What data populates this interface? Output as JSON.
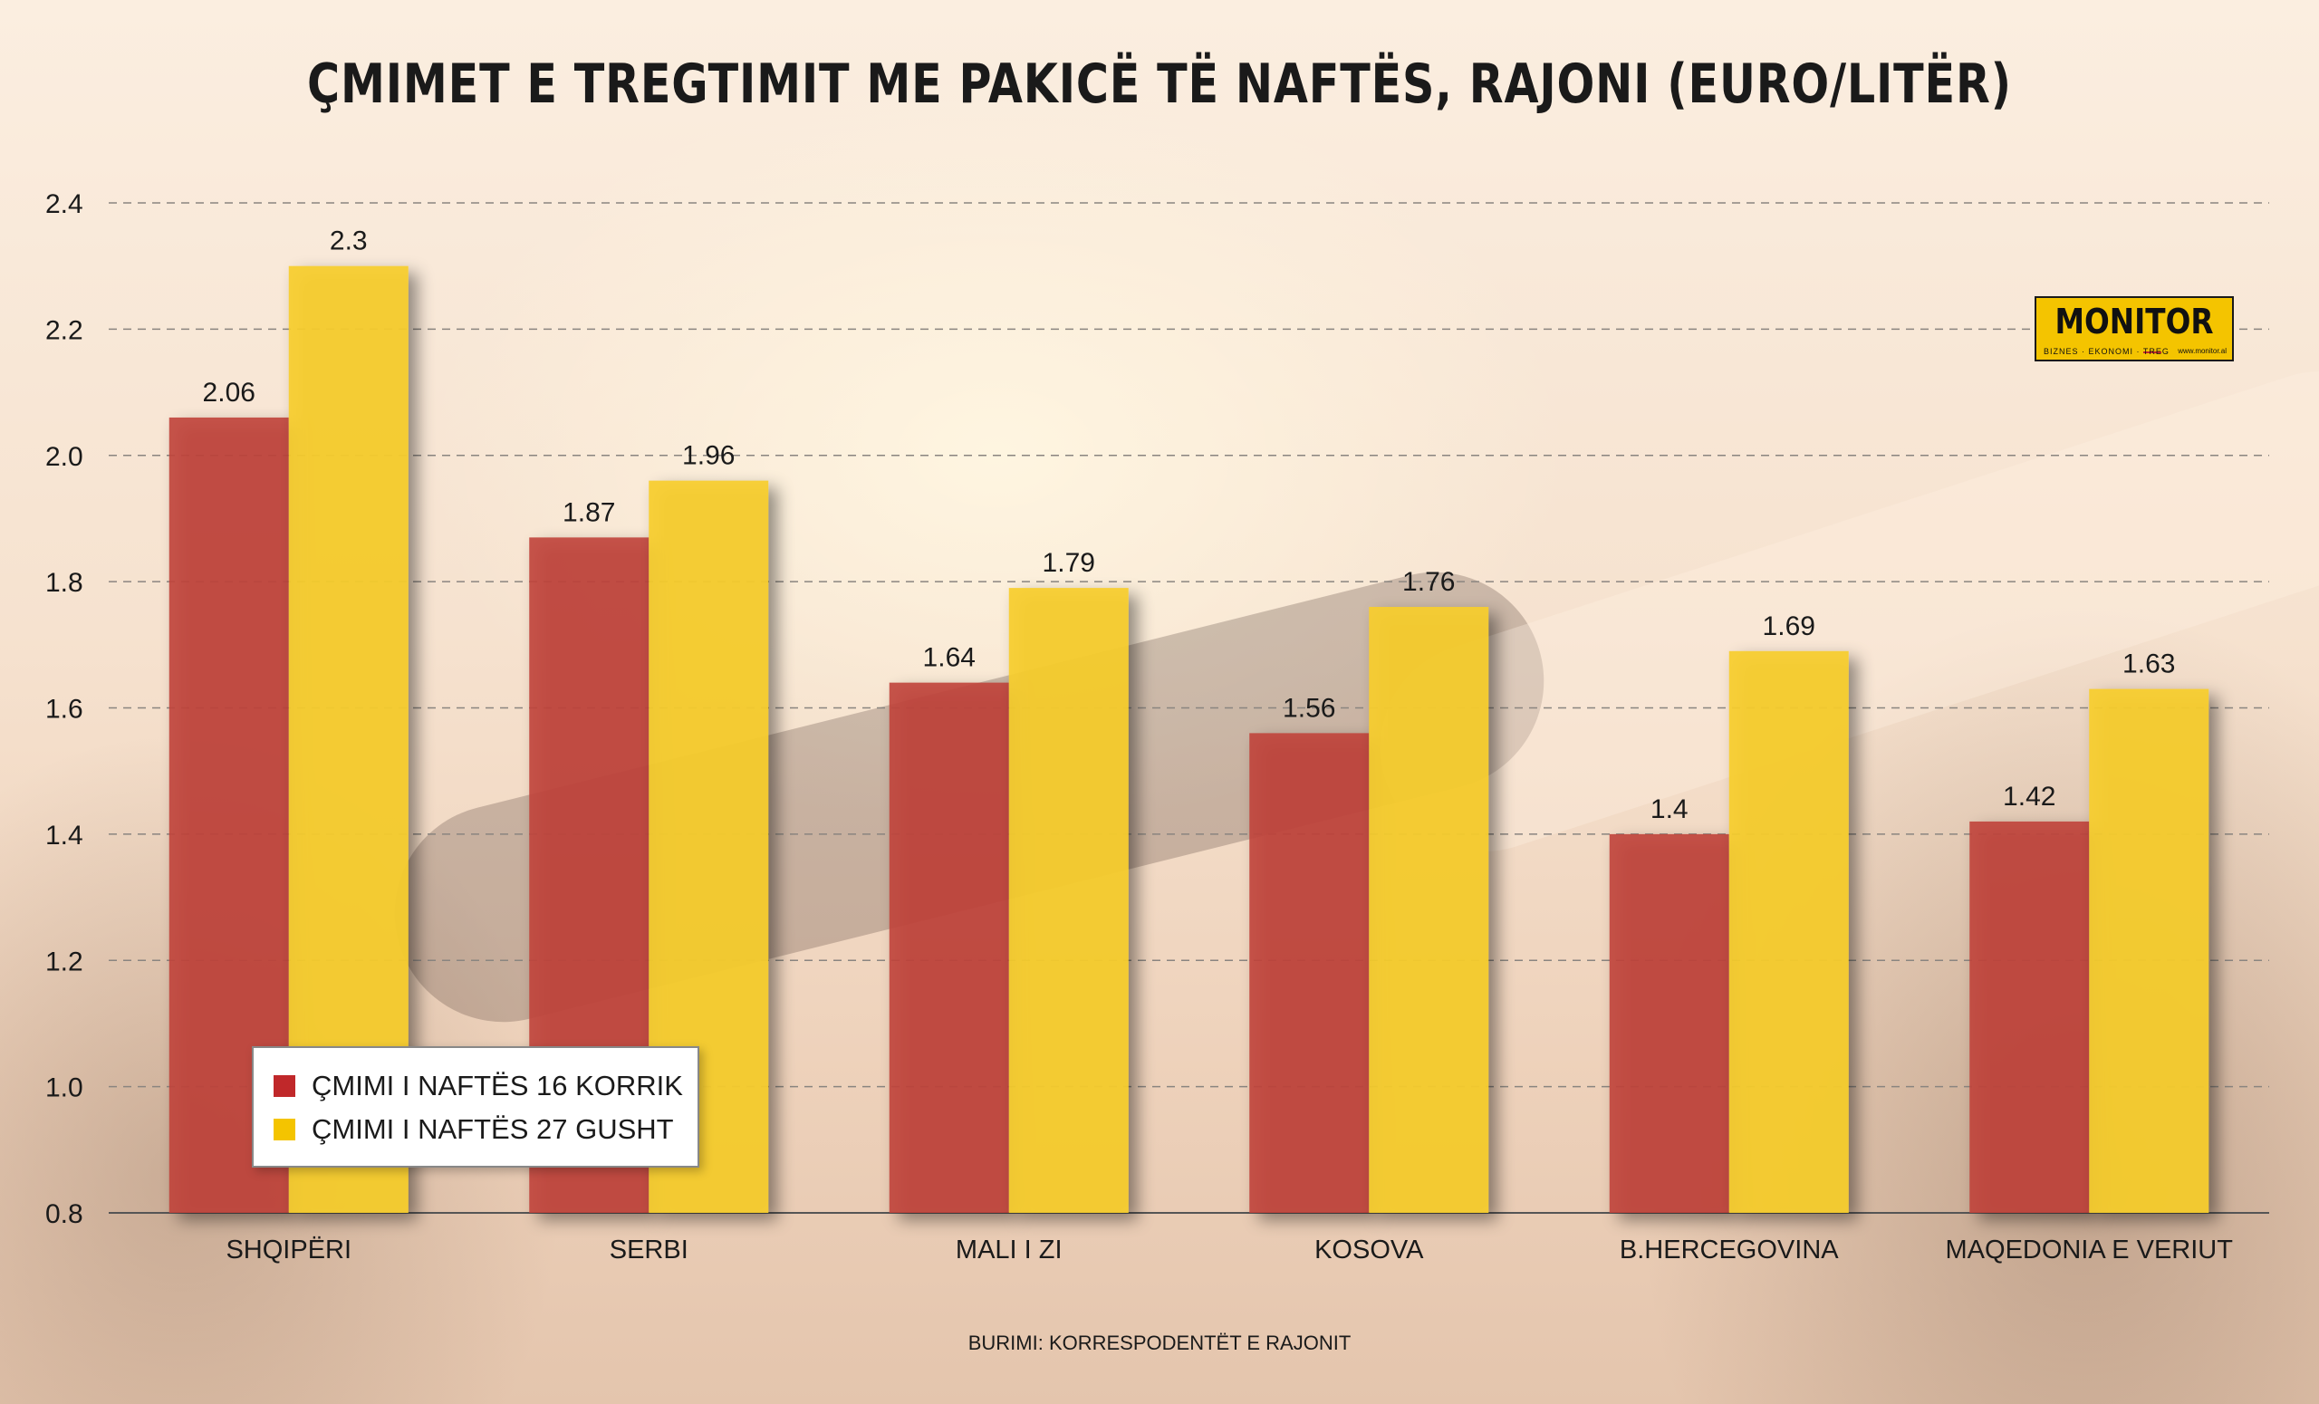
{
  "chart_data": {
    "type": "bar",
    "title": "ÇMIMET E TREGTIMIT ME PAKICË TË NAFTËS, RAJONI (EURO/LITËR)",
    "categories": [
      "SHQIPËRI",
      "SERBI",
      "MALI I ZI",
      "KOSOVA",
      "B.HERCEGOVINA",
      "MAQEDONIA E VERIUT"
    ],
    "series": [
      {
        "name": "ÇMIMI I NAFTËS 16 KORRIK",
        "color": "#c0443a",
        "values": [
          2.06,
          1.87,
          1.64,
          1.56,
          1.4,
          1.42
        ],
        "labels": [
          "2.06",
          "1.87",
          "1.64",
          "1.56",
          "1.4",
          "1.42"
        ]
      },
      {
        "name": "ÇMIMI I NAFTËS 27 GUSHT",
        "color": "#f7cd2c",
        "values": [
          2.3,
          1.96,
          1.79,
          1.76,
          1.69,
          1.63
        ],
        "labels": [
          "2.3",
          "1.96",
          "1.79",
          "1.76",
          "1.69",
          "1.63"
        ]
      }
    ],
    "ylim": [
      0.8,
      2.4
    ],
    "yticks": [
      "0.8",
      "1.0",
      "1.2",
      "1.4",
      "1.6",
      "1.8",
      "2.0",
      "2.2",
      "2.4"
    ],
    "grid": true,
    "legend_position": "bottom-left"
  },
  "logo": {
    "word": "MONITOR",
    "tagline": "BIZNES · EKONOMI · TREG",
    "url": "www.monitor.al"
  },
  "source": "BURIMI: KORRESPODENTËT E RAJONIT"
}
